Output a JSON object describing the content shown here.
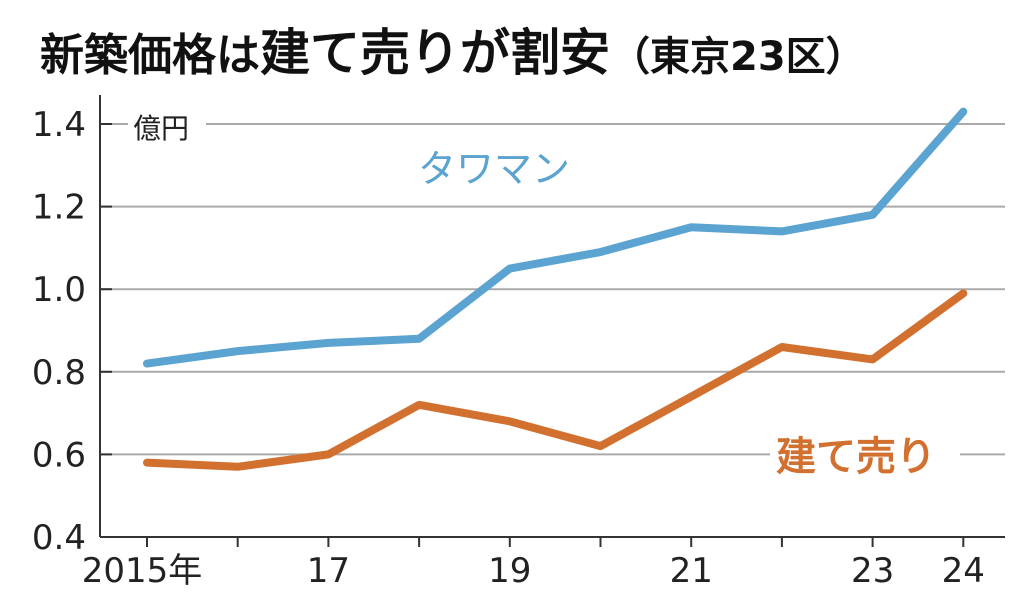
{
  "chart_data": {
    "type": "line",
    "title_parts": [
      "新築価格は",
      "建て売りが割安",
      "（東京23区）"
    ],
    "ylabel": "億円",
    "xlabel": "",
    "ylim": [
      0.4,
      1.45
    ],
    "yticks": [
      0.4,
      0.6,
      0.8,
      1.0,
      1.2,
      1.4
    ],
    "ytick_labels": [
      "0.4",
      "0.6",
      "0.8",
      "1.0",
      "1.2",
      "1.4"
    ],
    "x": [
      2015,
      2016,
      2017,
      2018,
      2019,
      2020,
      2021,
      2022,
      2023,
      2024
    ],
    "xtick_values": [
      2015,
      2017,
      2019,
      2021,
      2023,
      2024
    ],
    "xtick_labels": [
      "2015年",
      "17",
      "19",
      "21",
      "23",
      "24"
    ],
    "grid": true,
    "series": [
      {
        "name": "タワマン",
        "color": "#5ba3d0",
        "values": [
          0.82,
          0.85,
          0.87,
          0.88,
          1.05,
          1.09,
          1.15,
          1.14,
          1.18,
          1.43
        ]
      },
      {
        "name": "建て売り",
        "color": "#d2702f",
        "values": [
          0.58,
          0.57,
          0.6,
          0.72,
          0.68,
          0.62,
          0.74,
          0.86,
          0.83,
          0.99
        ]
      }
    ]
  }
}
